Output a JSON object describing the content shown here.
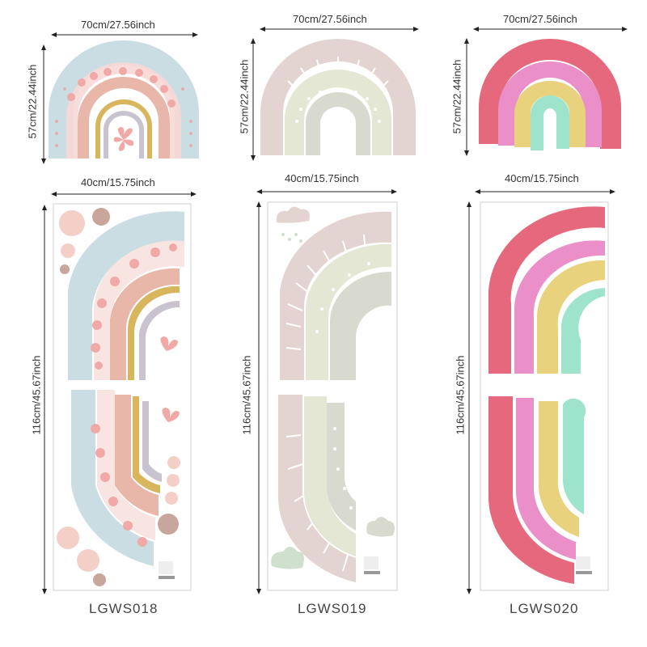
{
  "products": [
    {
      "code": "LGWS018",
      "top_width": "70cm/27.56inch",
      "top_height": "57cm/22.44inch",
      "sheet_width": "40cm/15.75inch",
      "sheet_height": "116cm/45.67inch",
      "colors": {
        "outer": "#c9dde3",
        "flower": "#f1a9a8",
        "pink": "#e8b7a9",
        "yellow": "#d8b65e",
        "gray": "#c9c3cf",
        "dots": "#e9a4a0"
      }
    },
    {
      "code": "LGWS019",
      "top_width": "70cm/27.56inch",
      "top_height": "57cm/22.44inch",
      "sheet_width": "40cm/15.75inch",
      "sheet_height": "116cm/45.67inch",
      "colors": {
        "outer": "#e3d4d2",
        "mid": "#e3e7d4",
        "inner": "#d9dacf",
        "cloud": "#cfe0cf"
      }
    },
    {
      "code": "LGWS020",
      "top_width": "70cm/27.56inch",
      "top_height": "57cm/22.44inch",
      "sheet_width": "40cm/15.75inch",
      "sheet_height": "116cm/45.67inch",
      "colors": {
        "outer": "#e6687c",
        "pink": "#ea8fc8",
        "yellow": "#e8d27e",
        "mint": "#9ee3cc"
      }
    }
  ]
}
